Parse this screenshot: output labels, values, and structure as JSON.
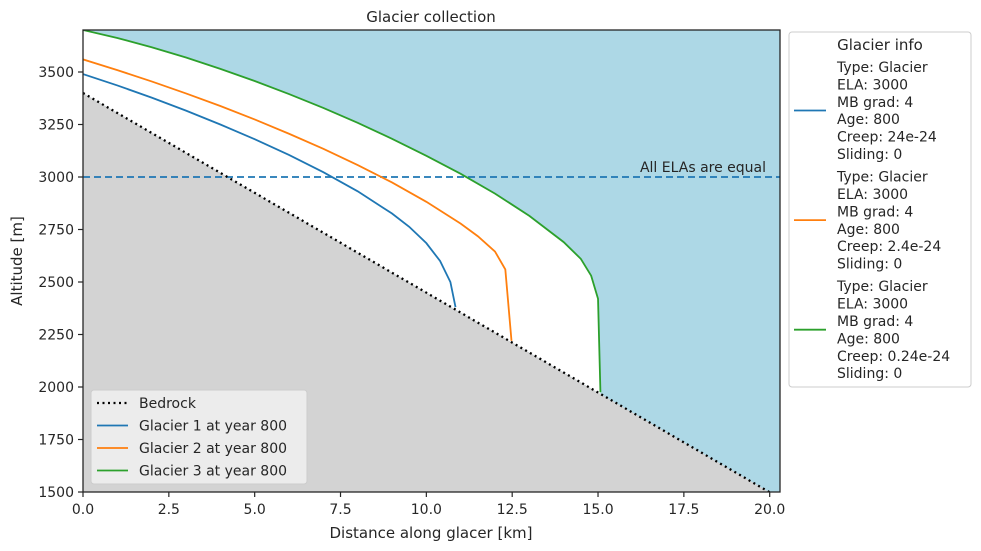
{
  "chart_data": {
    "type": "line",
    "title": "Glacier collection",
    "xlabel": "Distance along glacer [km]",
    "ylabel": "Altitude [m]",
    "xlim": [
      0,
      20.3
    ],
    "ylim": [
      1500,
      3700
    ],
    "x_ticks": [
      "0.0",
      "2.5",
      "5.0",
      "7.5",
      "10.0",
      "12.5",
      "15.0",
      "17.5",
      "20.0"
    ],
    "y_ticks": [
      "1500",
      "1750",
      "2000",
      "2250",
      "2500",
      "2750",
      "3000",
      "3250",
      "3500"
    ],
    "grid": false,
    "background_sky_color": "#add8e6",
    "background_ground_color": "#d3d3d3",
    "bedrock": {
      "name": "Bedrock",
      "color": "#000000",
      "style": "dotted",
      "x": [
        0,
        20.3
      ],
      "y": [
        3400,
        1470
      ]
    },
    "ela_line": {
      "altitude": 3000,
      "label": "All ELAs are equal",
      "color": "#1f77b4",
      "style": "dashed"
    },
    "series": [
      {
        "name": "Glacier 1 at year 800",
        "color": "#1f77b4",
        "x": [
          0,
          1,
          2,
          3,
          4,
          5,
          6,
          7,
          8,
          9,
          9.5,
          10,
          10.4,
          10.7,
          10.85
        ],
        "y": [
          3490,
          3436,
          3378,
          3316,
          3250,
          3180,
          3105,
          3023,
          2932,
          2826,
          2763,
          2685,
          2600,
          2500,
          2380
        ]
      },
      {
        "name": "Glacier 2 at year 800",
        "color": "#ff7f0e",
        "x": [
          0,
          1,
          2,
          3,
          4,
          5,
          6,
          7,
          8,
          9,
          10,
          11,
          11.5,
          12,
          12.3,
          12.48
        ],
        "y": [
          3560,
          3509,
          3455,
          3398,
          3338,
          3274,
          3206,
          3134,
          3057,
          2974,
          2882,
          2778,
          2718,
          2645,
          2560,
          2220
        ]
      },
      {
        "name": "Glacier 3 at year 800",
        "color": "#2ca02c",
        "x": [
          0,
          1,
          2,
          3,
          4,
          5,
          6,
          7,
          8,
          9,
          10,
          11,
          12,
          13,
          14,
          14.5,
          14.8,
          15.0,
          15.07
        ],
        "y": [
          3700,
          3662,
          3618,
          3569,
          3515,
          3457,
          3395,
          3329,
          3258,
          3182,
          3101,
          3015,
          2921,
          2815,
          2690,
          2610,
          2530,
          2420,
          1975
        ]
      }
    ],
    "legend": {
      "placement": "lower-left"
    },
    "info_legend": {
      "title": "Glacier info",
      "placement": "outside-right",
      "entries": [
        {
          "color": "#1f77b4",
          "lines": [
            "Type: Glacier",
            "ELA: 3000",
            "MB grad: 4",
            "Age: 800",
            "Creep: 24e-24",
            "Sliding: 0"
          ]
        },
        {
          "color": "#ff7f0e",
          "lines": [
            "Type: Glacier",
            "ELA: 3000",
            "MB grad: 4",
            "Age: 800",
            "Creep: 2.4e-24",
            "Sliding: 0"
          ]
        },
        {
          "color": "#2ca02c",
          "lines": [
            "Type: Glacier",
            "ELA: 3000",
            "MB grad: 4",
            "Age: 800",
            "Creep: 0.24e-24",
            "Sliding: 0"
          ]
        }
      ]
    }
  }
}
